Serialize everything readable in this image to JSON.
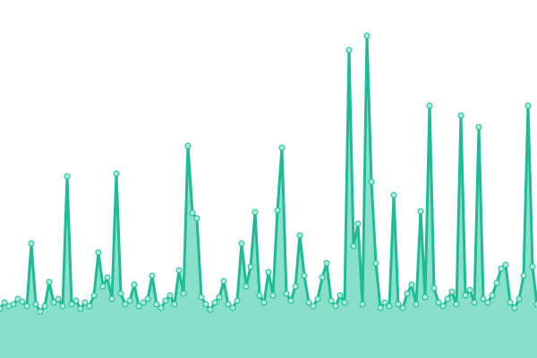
{
  "chart_data": {
    "type": "area",
    "values": [
      55,
      62,
      58,
      60,
      66,
      63,
      58,
      128,
      60,
      52,
      58,
      85,
      62,
      66,
      58,
      203,
      60,
      64,
      55,
      62,
      58,
      70,
      118,
      80,
      90,
      66,
      206,
      72,
      60,
      64,
      82,
      58,
      62,
      66,
      92,
      60,
      56,
      64,
      70,
      60,
      98,
      72,
      237,
      162,
      156,
      68,
      60,
      54,
      62,
      68,
      86,
      60,
      56,
      64,
      128,
      80,
      102,
      163,
      70,
      62,
      96,
      70,
      165,
      235,
      72,
      64,
      80,
      137,
      92,
      62,
      58,
      66,
      90,
      106,
      64,
      58,
      70,
      62,
      344,
      125,
      150,
      60,
      360,
      197,
      106,
      56,
      62,
      58,
      182,
      60,
      56,
      72,
      82,
      60,
      164,
      68,
      282,
      78,
      62,
      58,
      66,
      74,
      60,
      271,
      70,
      76,
      62,
      258,
      66,
      62,
      70,
      84,
      100,
      104,
      62,
      56,
      66,
      92,
      282,
      102,
      60
    ],
    "ylim": [
      0,
      400
    ],
    "color": "#1fbb94",
    "fill": "#88e0cb",
    "marker_fill": "#a8ecd9"
  }
}
